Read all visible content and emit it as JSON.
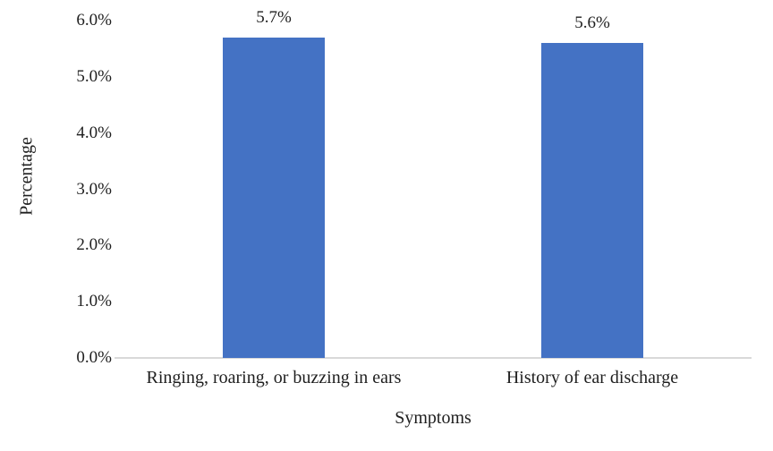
{
  "chart_data": {
    "type": "bar",
    "title": "",
    "categories": [
      "Ringing, roaring, or buzzing in ears",
      "History of ear discharge"
    ],
    "values": [
      5.7,
      5.6
    ],
    "value_labels": [
      "5.7%",
      "5.6%"
    ],
    "xlabel": "Symptoms",
    "ylabel": "Percentage",
    "ylim": [
      0,
      6
    ],
    "ytick_step": 1,
    "ytick_labels": [
      "0.0%",
      "1.0%",
      "2.0%",
      "3.0%",
      "4.0%",
      "5.0%",
      "6.0%"
    ],
    "grid": false,
    "legend": false,
    "bar_color": "#4472C4",
    "axis_line_color": "#D9D9D9",
    "text_color": "#1f1f1f"
  }
}
